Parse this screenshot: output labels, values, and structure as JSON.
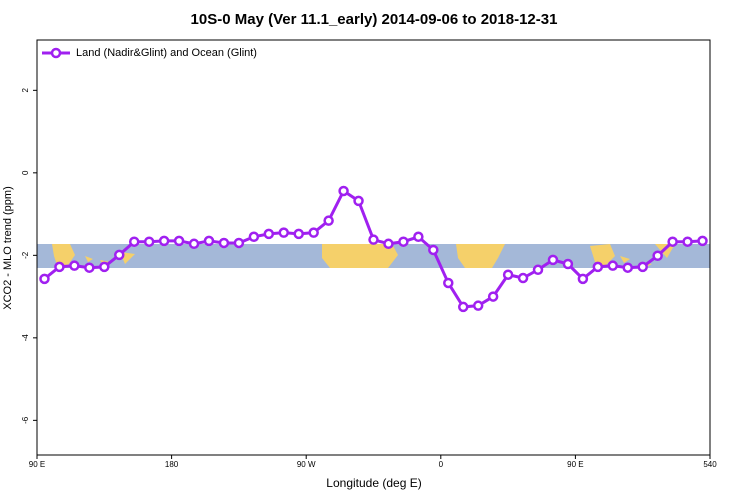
{
  "chart_data": {
    "type": "line",
    "title": "10S-0 May (Ver 11.1_early)   2014-09-06 to 2018-12-31",
    "x_label": "Longitude (deg E)",
    "y_label": "XCO2 - MLO trend (ppm)",
    "x": [
      95,
      105,
      115,
      125,
      135,
      145,
      155,
      165,
      175,
      185,
      195,
      205,
      215,
      225,
      235,
      245,
      255,
      265,
      275,
      285,
      295,
      305,
      315,
      325,
      335,
      345,
      355,
      365,
      375,
      385,
      395,
      405,
      415,
      425,
      435,
      445,
      455,
      465,
      475,
      485,
      495,
      505,
      515,
      525,
      535
    ],
    "series": [
      {
        "name": "Land (Nadir&Glint) and Ocean (Glint)",
        "color": "#a020f0",
        "values": [
          -2.57,
          -2.28,
          -2.25,
          -2.3,
          -2.28,
          -1.99,
          -1.67,
          -1.67,
          -1.65,
          -1.65,
          -1.72,
          -1.65,
          -1.7,
          -1.7,
          -1.55,
          -1.48,
          -1.45,
          -1.48,
          -1.45,
          -1.16,
          -0.44,
          -0.68,
          -1.62,
          -1.72,
          -1.67,
          -1.55,
          -1.87,
          -2.67,
          -3.25,
          -3.22,
          -3.0,
          -2.47,
          -2.55,
          -2.35,
          -2.11,
          -2.21,
          -2.57,
          -2.28,
          -2.25,
          -2.3,
          -2.28,
          -2.01,
          -1.67,
          -1.67,
          -1.65
        ]
      }
    ],
    "xlim": [
      90,
      540
    ],
    "xticks": [
      {
        "value": 90,
        "label": "90 E"
      },
      180,
      {
        "value": 270,
        "label": "90 W"
      },
      {
        "value": 360,
        "label": "0"
      },
      {
        "value": 450,
        "label": "90 E"
      },
      540
    ],
    "ylim": [
      -6.84,
      3.22
    ],
    "yticks": [
      2,
      0,
      -2,
      -4,
      -6
    ],
    "legend": "top-left",
    "grid": false
  }
}
